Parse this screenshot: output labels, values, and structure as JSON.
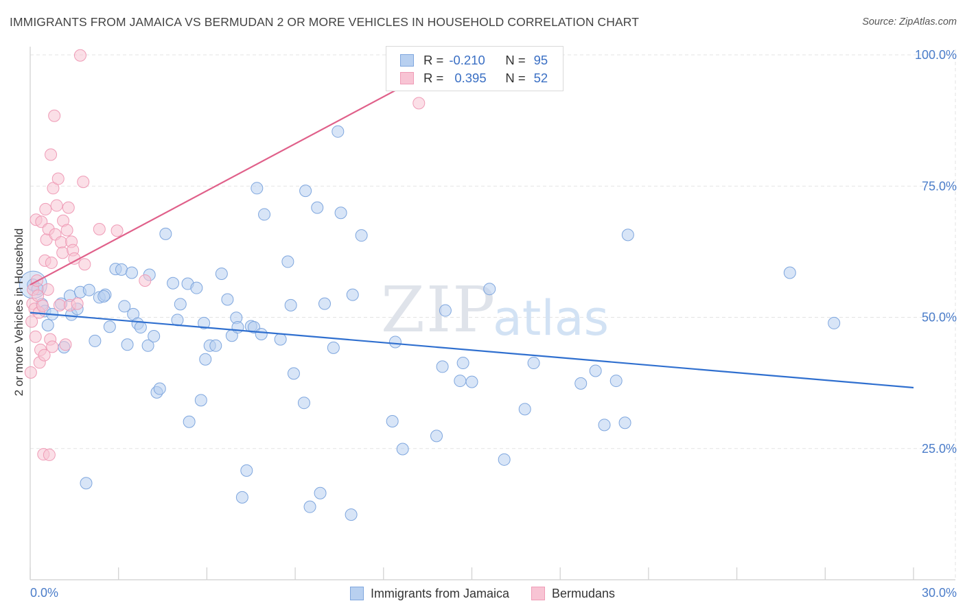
{
  "title": "IMMIGRANTS FROM JAMAICA VS BERMUDAN 2 OR MORE VEHICLES IN HOUSEHOLD CORRELATION CHART",
  "source": "Source: ZipAtlas.com",
  "watermark": {
    "zip": "ZIP",
    "atlas": "atlas"
  },
  "legend": {
    "r_label": "R =",
    "n_label": "N =",
    "rows": [
      {
        "r": "-0.210",
        "n": "95",
        "fill": "#b8d0f0",
        "stroke": "#7ea6de"
      },
      {
        "r": "0.395",
        "n": "52",
        "fill": "#f8c4d4",
        "stroke": "#ef9bb6"
      }
    ]
  },
  "bottom_legend": [
    {
      "label": "Immigrants from Jamaica",
      "fill": "#b8d0f0",
      "stroke": "#7ea6de"
    },
    {
      "label": "Bermudans",
      "fill": "#f8c4d4",
      "stroke": "#ef9bb6"
    }
  ],
  "chart_data": {
    "type": "scatter",
    "title": "IMMIGRANTS FROM JAMAICA VS BERMUDAN 2 OR MORE VEHICLES IN HOUSEHOLD CORRELATION CHART",
    "xlabel": "",
    "ylabel": "2 or more Vehicles in Household",
    "xlim": [
      0,
      30
    ],
    "ylim": [
      0,
      104
    ],
    "x_tick_labels": [
      {
        "value": 0,
        "label": "0.0%"
      },
      {
        "value": 30,
        "label": "30.0%"
      }
    ],
    "y_tick_labels": [
      {
        "value": 25,
        "label": "25.0%"
      },
      {
        "value": 50,
        "label": "50.0%"
      },
      {
        "value": 75,
        "label": "75.0%"
      },
      {
        "value": 100,
        "label": "100.0%"
      }
    ],
    "x_minor_ticks": [
      0,
      3,
      6,
      9,
      12,
      15,
      18,
      21,
      24,
      27,
      30
    ],
    "grid": true,
    "series": [
      {
        "name": "Immigrants from Jamaica",
        "color": "#7ea6de",
        "fill": "#b8d0f0",
        "trendline": {
          "x": [
            0,
            30
          ],
          "y": [
            50.9,
            36.6
          ],
          "color": "#2f6fcf"
        },
        "points": [
          [
            0.1,
            56.2
          ],
          [
            0.25,
            55.4
          ],
          [
            0.4,
            52.5
          ],
          [
            0.5,
            51.2
          ],
          [
            0.6,
            48.5
          ],
          [
            0.75,
            50.6
          ],
          [
            1.05,
            52.6
          ],
          [
            1.15,
            44.3
          ],
          [
            1.4,
            50.5
          ],
          [
            1.6,
            51.6
          ],
          [
            1.35,
            54.1
          ],
          [
            1.7,
            54.8
          ],
          [
            2.0,
            55.2
          ],
          [
            1.9,
            18.4
          ],
          [
            2.2,
            45.5
          ],
          [
            2.35,
            53.8
          ],
          [
            2.55,
            54.3
          ],
          [
            2.5,
            54.0
          ],
          [
            2.7,
            48.2
          ],
          [
            2.9,
            59.2
          ],
          [
            3.1,
            59.1
          ],
          [
            3.2,
            52.1
          ],
          [
            3.3,
            44.8
          ],
          [
            3.45,
            58.5
          ],
          [
            3.5,
            50.6
          ],
          [
            3.65,
            48.8
          ],
          [
            3.75,
            48.1
          ],
          [
            4.0,
            44.6
          ],
          [
            4.05,
            58.1
          ],
          [
            4.2,
            46.4
          ],
          [
            4.3,
            35.7
          ],
          [
            4.4,
            36.4
          ],
          [
            4.6,
            65.9
          ],
          [
            4.85,
            56.5
          ],
          [
            5.0,
            49.5
          ],
          [
            5.1,
            52.5
          ],
          [
            5.35,
            56.4
          ],
          [
            5.4,
            30.1
          ],
          [
            5.65,
            55.6
          ],
          [
            5.8,
            34.2
          ],
          [
            5.9,
            48.9
          ],
          [
            5.95,
            42.0
          ],
          [
            6.1,
            44.6
          ],
          [
            6.3,
            44.6
          ],
          [
            6.5,
            58.3
          ],
          [
            6.7,
            53.4
          ],
          [
            6.85,
            46.5
          ],
          [
            7.0,
            49.9
          ],
          [
            7.05,
            48.1
          ],
          [
            7.2,
            15.7
          ],
          [
            7.35,
            20.8
          ],
          [
            7.5,
            48.3
          ],
          [
            7.6,
            48.1
          ],
          [
            7.7,
            74.6
          ],
          [
            7.85,
            46.8
          ],
          [
            7.95,
            69.6
          ],
          [
            8.5,
            45.8
          ],
          [
            8.75,
            60.6
          ],
          [
            8.85,
            52.3
          ],
          [
            8.95,
            39.3
          ],
          [
            9.3,
            33.7
          ],
          [
            9.35,
            74.1
          ],
          [
            9.5,
            13.9
          ],
          [
            9.75,
            70.9
          ],
          [
            9.85,
            16.5
          ],
          [
            10.0,
            52.6
          ],
          [
            10.3,
            44.2
          ],
          [
            10.45,
            85.4
          ],
          [
            10.55,
            69.9
          ],
          [
            10.9,
            12.4
          ],
          [
            10.95,
            54.3
          ],
          [
            11.25,
            65.6
          ],
          [
            12.3,
            30.2
          ],
          [
            12.4,
            45.3
          ],
          [
            12.65,
            24.9
          ],
          [
            13.8,
            27.4
          ],
          [
            14.0,
            40.6
          ],
          [
            14.1,
            51.3
          ],
          [
            14.6,
            37.9
          ],
          [
            14.7,
            41.3
          ],
          [
            15.0,
            37.7
          ],
          [
            15.6,
            55.4
          ],
          [
            16.1,
            22.9
          ],
          [
            16.8,
            32.5
          ],
          [
            17.1,
            41.3
          ],
          [
            18.7,
            37.4
          ],
          [
            19.2,
            39.8
          ],
          [
            19.5,
            29.5
          ],
          [
            19.9,
            37.9
          ],
          [
            20.2,
            29.9
          ],
          [
            20.3,
            65.7
          ],
          [
            25.8,
            58.5
          ],
          [
            27.3,
            48.9
          ]
        ]
      },
      {
        "name": "Bermudans",
        "color": "#ef9bb6",
        "fill": "#f8c4d4",
        "trendline": {
          "x": [
            0,
            14.3
          ],
          "y": [
            56.2,
            98.9
          ],
          "color": "#e0608a"
        },
        "points": [
          [
            0.02,
            39.5
          ],
          [
            0.05,
            49.2
          ],
          [
            0.08,
            52.6
          ],
          [
            0.1,
            55.3
          ],
          [
            0.15,
            51.6
          ],
          [
            0.18,
            46.3
          ],
          [
            0.2,
            68.6
          ],
          [
            0.23,
            57.0
          ],
          [
            0.26,
            54.1
          ],
          [
            0.3,
            50.9
          ],
          [
            0.32,
            41.4
          ],
          [
            0.35,
            43.8
          ],
          [
            0.38,
            68.2
          ],
          [
            0.42,
            52.2
          ],
          [
            0.45,
            23.9
          ],
          [
            0.48,
            42.8
          ],
          [
            0.5,
            60.8
          ],
          [
            0.52,
            70.6
          ],
          [
            0.55,
            64.8
          ],
          [
            0.6,
            55.3
          ],
          [
            0.62,
            66.8
          ],
          [
            0.65,
            23.8
          ],
          [
            0.68,
            45.8
          ],
          [
            0.7,
            81.0
          ],
          [
            0.72,
            60.4
          ],
          [
            0.75,
            44.4
          ],
          [
            0.78,
            74.6
          ],
          [
            0.82,
            88.4
          ],
          [
            0.85,
            65.8
          ],
          [
            0.9,
            71.3
          ],
          [
            0.95,
            76.4
          ],
          [
            1.0,
            52.3
          ],
          [
            1.05,
            64.3
          ],
          [
            1.1,
            62.3
          ],
          [
            1.12,
            68.4
          ],
          [
            1.2,
            44.8
          ],
          [
            1.25,
            66.6
          ],
          [
            1.3,
            70.9
          ],
          [
            1.35,
            52.3
          ],
          [
            1.4,
            64.4
          ],
          [
            1.45,
            62.8
          ],
          [
            1.5,
            61.2
          ],
          [
            1.6,
            52.6
          ],
          [
            1.7,
            99.9
          ],
          [
            1.8,
            75.8
          ],
          [
            1.85,
            60.1
          ],
          [
            2.35,
            66.8
          ],
          [
            2.95,
            66.5
          ],
          [
            3.9,
            57.0
          ],
          [
            13.2,
            90.8
          ]
        ]
      }
    ]
  }
}
